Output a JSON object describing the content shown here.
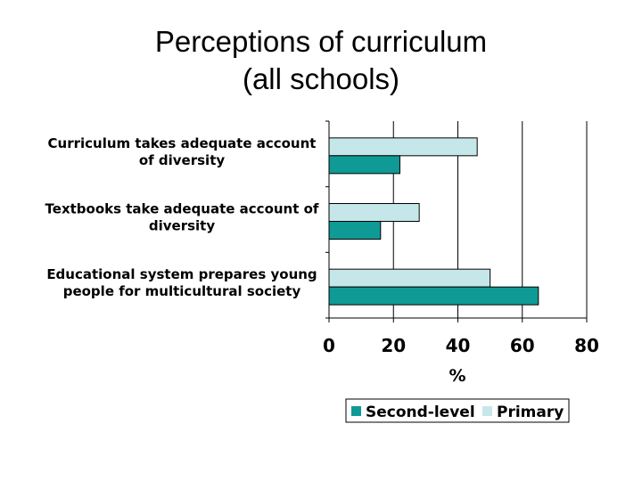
{
  "title_lines": [
    "Perceptions of curriculum",
    "(all schools)"
  ],
  "colors": {
    "Second-level": "#0f9a96",
    "Primary": "#c5e7ea",
    "stroke": "#000000",
    "grid": "#000000"
  },
  "chart_data": {
    "type": "bar",
    "orientation": "horizontal",
    "title": "Perceptions of curriculum (all schools)",
    "categories": [
      [
        "Curriculum takes adequate account",
        "of diversity"
      ],
      [
        "Textbooks take adequate account of",
        "diversity"
      ],
      [
        "Educational system prepares young",
        "people for multicultural society"
      ]
    ],
    "series": [
      {
        "name": "Primary",
        "values": [
          46,
          28,
          50
        ]
      },
      {
        "name": "Second-level",
        "values": [
          22,
          16,
          65
        ]
      }
    ],
    "xlabel": "%",
    "xlim": [
      0,
      80
    ],
    "xticks": [
      0,
      20,
      40,
      60,
      80
    ],
    "grid": true,
    "legend": {
      "position": "bottom",
      "entries": [
        "Second-level",
        "Primary"
      ]
    }
  }
}
